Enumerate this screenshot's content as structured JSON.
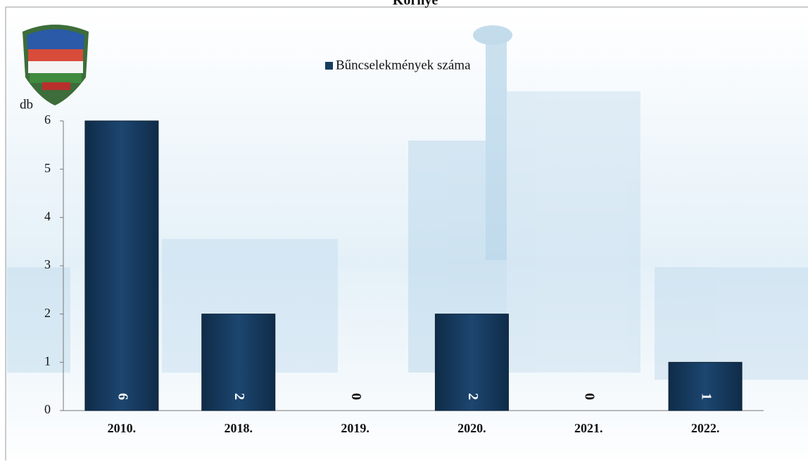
{
  "chart_data": {
    "type": "bar",
    "title": "Környe",
    "legend": "Bűncselekmények száma",
    "y_label": "db",
    "categories": [
      "2010.",
      "2018.",
      "2019.",
      "2020.",
      "2021.",
      "2022."
    ],
    "values": [
      6,
      2,
      0,
      2,
      0,
      1
    ],
    "color": "#173c5e",
    "ylim": [
      0,
      6
    ],
    "yticks": [
      0,
      1,
      2,
      3,
      4,
      5,
      6
    ]
  }
}
